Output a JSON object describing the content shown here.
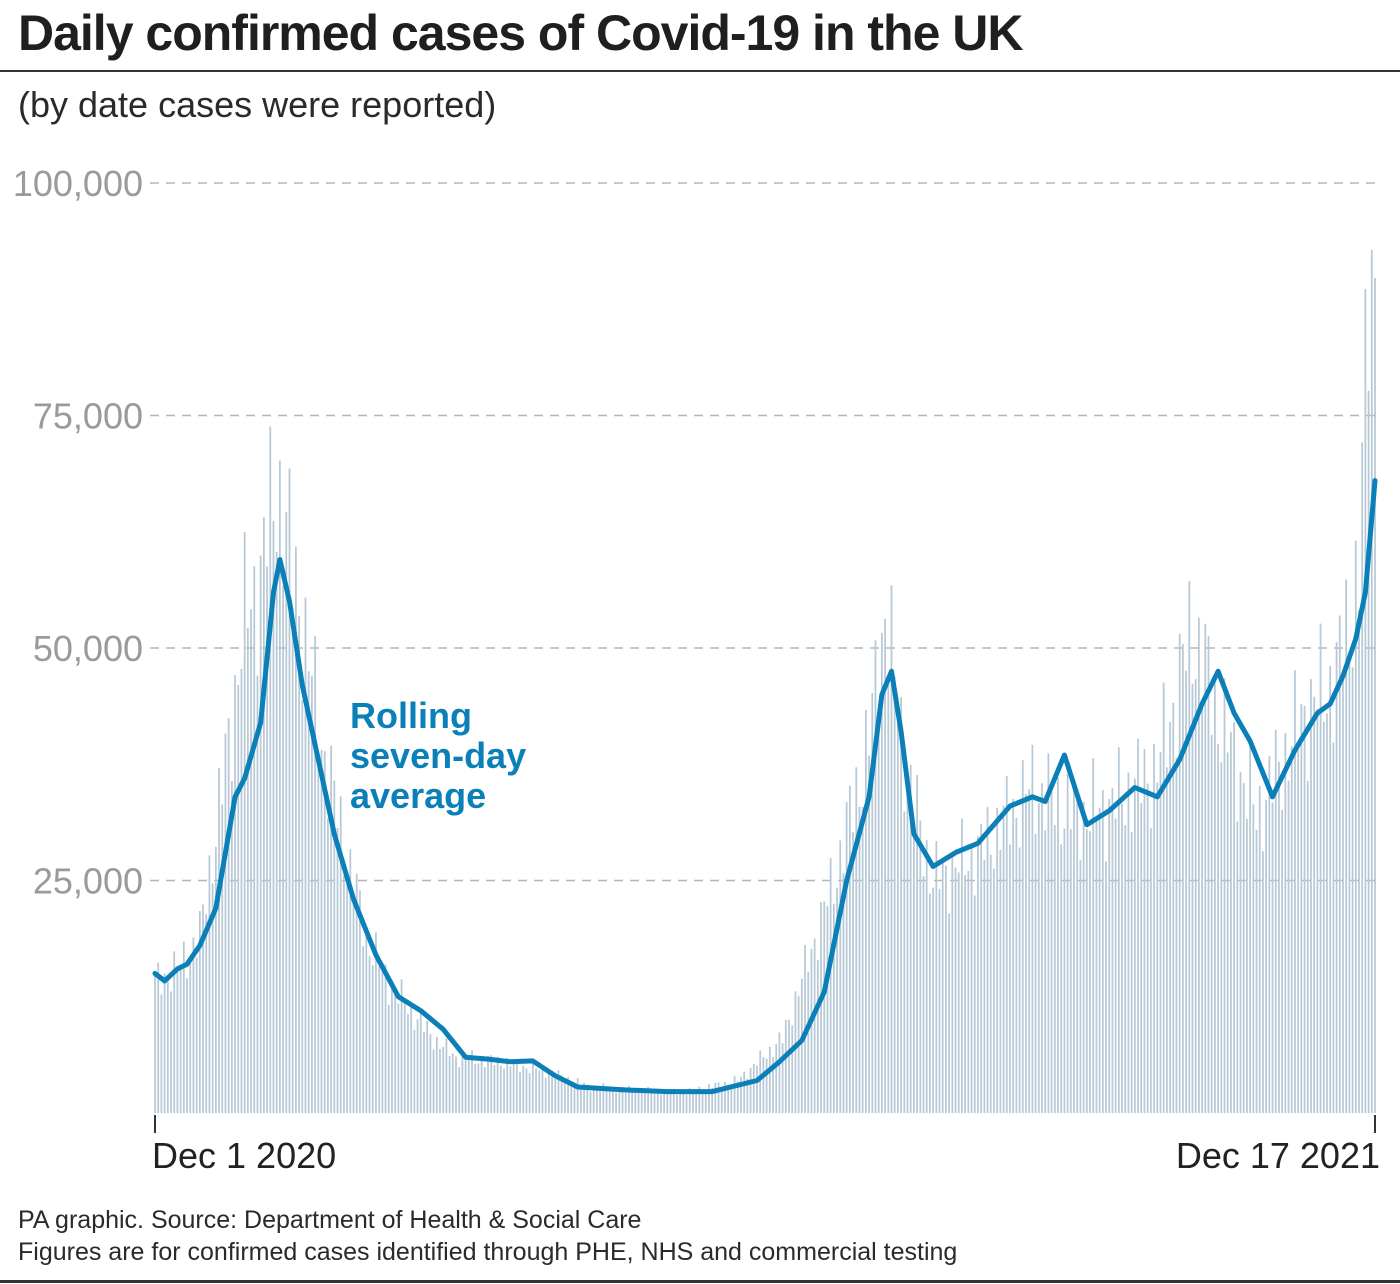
{
  "title": "Daily confirmed cases of Covid-19 in the UK",
  "subtitle": "(by date cases were reported)",
  "footer": {
    "source": "PA graphic. Source: Department of Health & Social Care",
    "note": "Figures are for confirmed cases identified through PHE, NHS and commercial testing"
  },
  "colors": {
    "bars": "#b7c9d6",
    "average_line": "#0a7fb8",
    "grid": "#b5b5b5",
    "tick_labels": "#9a9a9a",
    "text": "#222222"
  },
  "chart_data": {
    "type": "bar",
    "x_start": "Dec 1 2020",
    "x_end": "Dec 17 2021",
    "x_tick_labels": [
      "Dec 1 2020",
      "Dec 17 2021"
    ],
    "ylim": [
      0,
      100000
    ],
    "yticks": [
      25000,
      50000,
      75000,
      100000
    ],
    "ytick_labels": [
      "25,000",
      "50,000",
      "75,000",
      "100,000"
    ],
    "grid": "dashed horizontal",
    "annotation": "Rolling seven-day average",
    "annotation_lines": [
      "Rolling",
      "seven-day",
      "average"
    ],
    "series": [
      {
        "kind": "bars",
        "description_keypoints": [
          [
            "Dec 1 2020",
            14000
          ],
          [
            "Dec 8 2020",
            15500
          ],
          [
            "Dec 15 2020",
            19000
          ],
          [
            "Dec 22 2020",
            35000
          ],
          [
            "Dec 29 2020",
            53000
          ],
          [
            "Jan 3 2021",
            58000
          ],
          [
            "Jan 8 2021",
            68000
          ],
          [
            "Jan 15 2021",
            55000
          ],
          [
            "Jan 22 2021",
            40000
          ],
          [
            "Jan 29 2021",
            29000
          ],
          [
            "Feb 5 2021",
            19000
          ],
          [
            "Feb 12 2021",
            14000
          ],
          [
            "Feb 19 2021",
            11000
          ],
          [
            "Feb 26 2021",
            8000
          ],
          [
            "Mar 5 2021",
            6000
          ],
          [
            "Mar 19 2021",
            5500
          ],
          [
            "Apr 2 2021",
            4500
          ],
          [
            "Apr 16 2021",
            2800
          ],
          [
            "May 1 2021",
            2500
          ],
          [
            "May 15 2021",
            2200
          ],
          [
            "Jun 1 2021",
            3500
          ],
          [
            "Jun 15 2021",
            8000
          ],
          [
            "Jul 1 2021",
            25000
          ],
          [
            "Jul 12 2021",
            40000
          ],
          [
            "Jul 17 2021",
            54000
          ],
          [
            "Jul 24 2021",
            36000
          ],
          [
            "Aug 1 2021",
            25000
          ],
          [
            "Aug 15 2021",
            28000
          ],
          [
            "Sep 1 2021",
            35000
          ],
          [
            "Sep 15 2021",
            32000
          ],
          [
            "Sep 25 2021",
            33000
          ],
          [
            "Oct 10 2021",
            37000
          ],
          [
            "Oct 21 2021",
            52000
          ],
          [
            "Nov 1 2021",
            40000
          ],
          [
            "Nov 10 2021",
            32000
          ],
          [
            "Nov 25 2021",
            43000
          ],
          [
            "Dec 5 2021",
            47000
          ],
          [
            "Dec 12 2021",
            58000
          ],
          [
            "Dec 14 2021",
            78000
          ],
          [
            "Dec 15 2021",
            88000
          ],
          [
            "Dec 17 2021",
            93000
          ]
        ]
      },
      {
        "kind": "line",
        "description_keypoints": [
          [
            "Dec 1 2020",
            15000
          ],
          [
            "Dec 4 2020",
            14200
          ],
          [
            "Dec 8 2020",
            15500
          ],
          [
            "Dec 11 2020",
            16000
          ],
          [
            "Dec 15 2020",
            18000
          ],
          [
            "Dec 20 2020",
            22000
          ],
          [
            "Dec 26 2020",
            34000
          ],
          [
            "Dec 29 2020",
            36000
          ],
          [
            "Jan 3 2021",
            42000
          ],
          [
            "Jan 7 2021",
            56000
          ],
          [
            "Jan 9 2021",
            59500
          ],
          [
            "Jan 12 2021",
            55000
          ],
          [
            "Jan 16 2021",
            46000
          ],
          [
            "Jan 21 2021",
            38000
          ],
          [
            "Jan 26 2021",
            30000
          ],
          [
            "Feb 1 2021",
            23000
          ],
          [
            "Feb 8 2021",
            17000
          ],
          [
            "Feb 15 2021",
            12500
          ],
          [
            "Feb 22 2021",
            11000
          ],
          [
            "Mar 1 2021",
            9000
          ],
          [
            "Mar 8 2021",
            6000
          ],
          [
            "Mar 15 2021",
            5800
          ],
          [
            "Mar 22 2021",
            5500
          ],
          [
            "Mar 29 2021",
            5600
          ],
          [
            "Apr 5 2021",
            4000
          ],
          [
            "Apr 12 2021",
            2800
          ],
          [
            "Apr 26 2021",
            2500
          ],
          [
            "May 10 2021",
            2300
          ],
          [
            "May 24 2021",
            2300
          ],
          [
            "Jun 7 2021",
            3500
          ],
          [
            "Jun 14 2021",
            5500
          ],
          [
            "Jun 21 2021",
            7800
          ],
          [
            "Jun 28 2021",
            13000
          ],
          [
            "Jul 5 2021",
            25000
          ],
          [
            "Jul 12 2021",
            34000
          ],
          [
            "Jul 16 2021",
            45000
          ],
          [
            "Jul 19 2021",
            47500
          ],
          [
            "Jul 22 2021",
            41000
          ],
          [
            "Jul 26 2021",
            30000
          ],
          [
            "Aug 1 2021",
            26500
          ],
          [
            "Aug 8 2021",
            28000
          ],
          [
            "Aug 15 2021",
            29000
          ],
          [
            "Aug 25 2021",
            33000
          ],
          [
            "Sep 1 2021",
            34000
          ],
          [
            "Sep 5 2021",
            33500
          ],
          [
            "Sep 11 2021",
            38500
          ],
          [
            "Sep 18 2021",
            31000
          ],
          [
            "Sep 25 2021",
            32500
          ],
          [
            "Oct 3 2021",
            35000
          ],
          [
            "Oct 10 2021",
            34000
          ],
          [
            "Oct 17 2021",
            38000
          ],
          [
            "Oct 24 2021",
            44000
          ],
          [
            "Oct 29 2021",
            47500
          ],
          [
            "Nov 3 2021",
            43000
          ],
          [
            "Nov 8 2021",
            40000
          ],
          [
            "Nov 15 2021",
            34000
          ],
          [
            "Nov 22 2021",
            39000
          ],
          [
            "Nov 29 2021",
            43000
          ],
          [
            "Dec 3 2021",
            44000
          ],
          [
            "Dec 7 2021",
            47000
          ],
          [
            "Dec 11 2021",
            51000
          ],
          [
            "Dec 14 2021",
            56000
          ],
          [
            "Dec 17 2021",
            68000
          ]
        ]
      }
    ]
  }
}
